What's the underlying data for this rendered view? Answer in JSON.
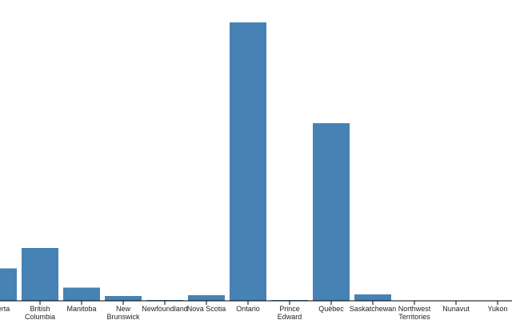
{
  "chart_data": {
    "type": "bar",
    "categories": [
      [
        "Alberta"
      ],
      [
        "British",
        "Columbia"
      ],
      [
        "Manitoba"
      ],
      [
        "New",
        "Brunswick"
      ],
      [
        "Newfoundland"
      ],
      [
        "Nova Scotia"
      ],
      [
        "Ontario"
      ],
      [
        "Prince",
        "Edward"
      ],
      [
        "Québec"
      ],
      [
        "Saskatchewan"
      ],
      [
        "Northwest",
        "Territories"
      ],
      [
        "Nunavut"
      ],
      [
        "Yukon"
      ]
    ],
    "values": [
      41,
      67,
      17,
      6,
      1,
      7,
      354,
      1,
      226,
      8,
      0,
      0,
      0
    ],
    "ylim": [
      0,
      360
    ],
    "bar_color": "#4682b4",
    "axis_color": "#000000"
  }
}
